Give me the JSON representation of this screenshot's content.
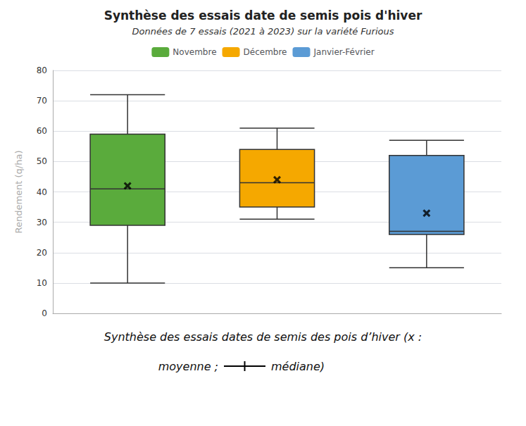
{
  "chart_data": {
    "type": "boxplot",
    "title": "Synthèse des essais date de semis pois d'hiver",
    "subtitle": "Données de 7 essais (2021 à 2023) sur la variété Furious",
    "ylabel": "Rendement (q/ha)",
    "categories": [
      "Novembre",
      "Décembre",
      "Janvier-Février"
    ],
    "colors": [
      "#5aab3c",
      "#f5a800",
      "#5b9bd5"
    ],
    "whisker_low": [
      10,
      31,
      15
    ],
    "q1": [
      29,
      35,
      26
    ],
    "median": [
      41,
      43,
      27
    ],
    "q3": [
      59,
      54,
      52
    ],
    "whisker_high": [
      72,
      61,
      57
    ],
    "mean": [
      42,
      44,
      33
    ],
    "ylim": [
      0,
      80
    ],
    "yticks": [
      0,
      10,
      20,
      30,
      40,
      50,
      60,
      70,
      80
    ],
    "grid": true,
    "legend": "top",
    "tick_labels": "y",
    "caption": [
      "Synthèse des essais dates de semis des pois d’hiver (x :",
      "moyenne ;",
      "médiane)"
    ]
  }
}
